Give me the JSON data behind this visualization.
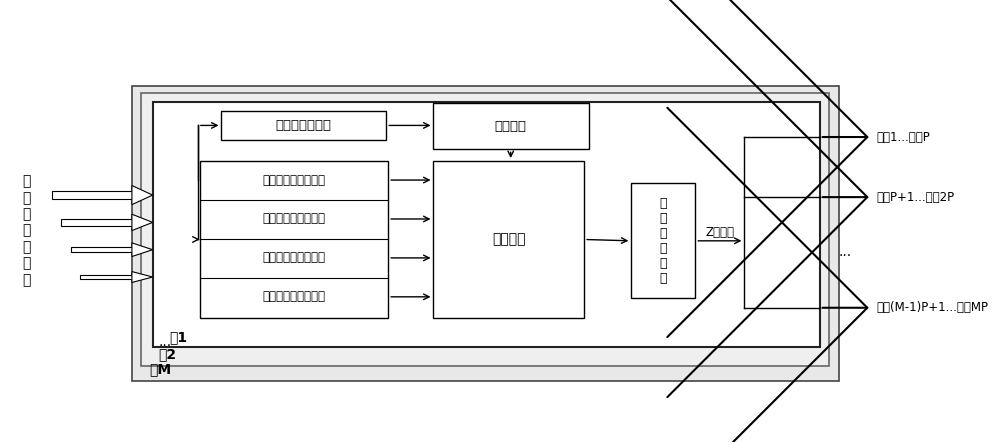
{
  "bg_color": "#ffffff",
  "text_color": "#000000",
  "box1_label": "脉宽设置寄存器",
  "box2_label": "脉冲发生",
  "box3_labels": [
    "脉冲通道设置寄存器",
    "脉冲宽度设置寄存器",
    "相位关系设置寄存器",
    "脉冲发生控制寄存器"
  ],
  "box4_label": "控制逻辑",
  "box5_label": "通\n道\n选\n通\n逻\n辑",
  "z_label": "Z路脉冲",
  "output_labels": [
    "脉冲1...脉冲P",
    "脉冲P+1...脉冲2P",
    "...",
    "脉冲(M-1)P+1...脉冲MP"
  ],
  "group_labels": [
    "组1",
    "组2",
    "...",
    "组M"
  ],
  "left_chars": [
    "控",
    "制",
    "和",
    "配",
    "置",
    "指",
    "令"
  ]
}
